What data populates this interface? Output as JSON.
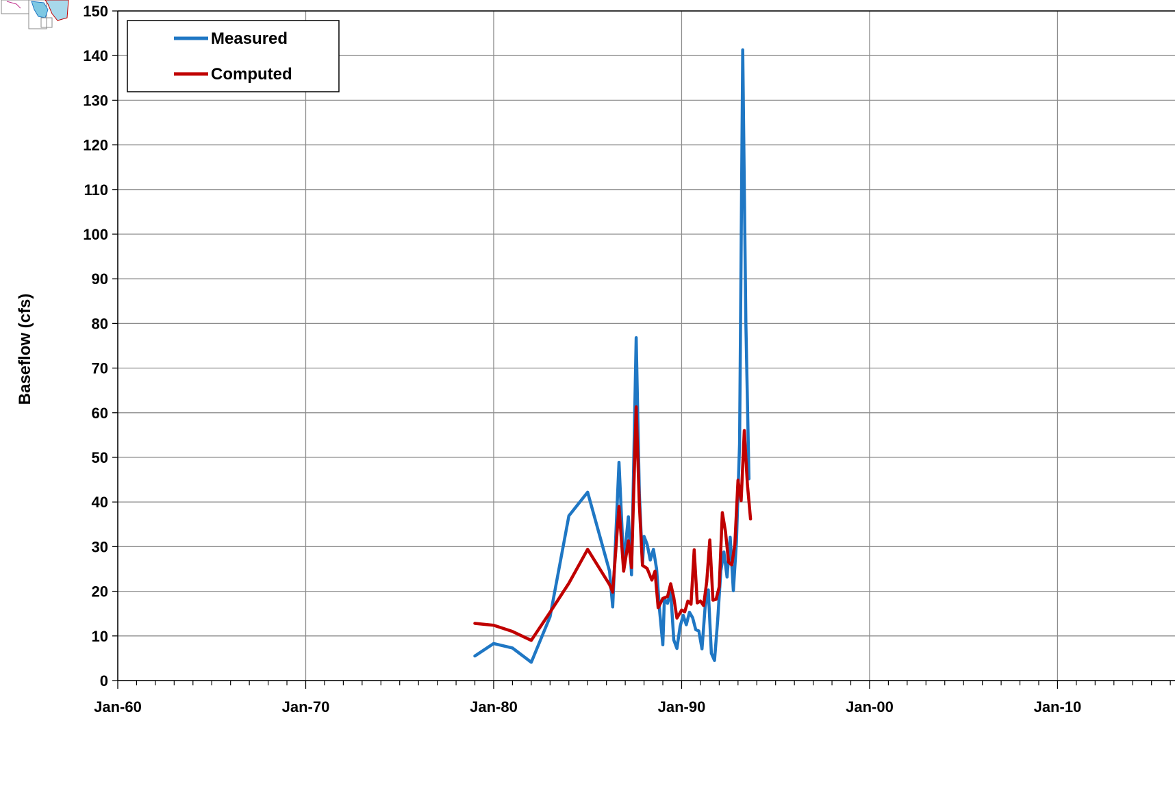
{
  "chart_data": {
    "type": "line",
    "ylabel": "Baseflow (cfs)",
    "xlabel": "",
    "ylim": [
      0,
      150
    ],
    "y_ticks": [
      0,
      10,
      20,
      30,
      40,
      50,
      60,
      70,
      80,
      90,
      100,
      110,
      120,
      130,
      140,
      150
    ],
    "xlim": [
      "1960-01",
      "2016-04"
    ],
    "x_ticks": [
      {
        "date": "1960-01",
        "label": "Jan-60"
      },
      {
        "date": "1970-01",
        "label": "Jan-70"
      },
      {
        "date": "1980-01",
        "label": "Jan-80"
      },
      {
        "date": "1990-01",
        "label": "Jan-90"
      },
      {
        "date": "2000-01",
        "label": "Jan-00"
      },
      {
        "date": "2010-01",
        "label": "Jan-10"
      }
    ],
    "grid": true,
    "legend": "top-left",
    "series": [
      {
        "name": "Measured",
        "color": "#1f77c4",
        "points": [
          [
            "1979-01",
            5.5
          ],
          [
            "1980-01",
            8.3
          ],
          [
            "1981-01",
            7.3
          ],
          [
            "1982-01",
            4.1
          ],
          [
            "1983-01",
            14.3
          ],
          [
            "1984-01",
            36.9
          ],
          [
            "1985-01",
            42.2
          ],
          [
            "1986-03",
            24.5
          ],
          [
            "1986-05",
            16.5
          ],
          [
            "1986-09",
            48.9
          ],
          [
            "1986-12",
            26.0
          ],
          [
            "1987-03",
            36.7
          ],
          [
            "1987-05",
            23.7
          ],
          [
            "1987-08",
            76.8
          ],
          [
            "1987-10",
            42.0
          ],
          [
            "1987-12",
            26.0
          ],
          [
            "1988-01",
            32.3
          ],
          [
            "1988-03",
            30.5
          ],
          [
            "1988-05",
            27.0
          ],
          [
            "1988-07",
            29.4
          ],
          [
            "1988-09",
            25.0
          ],
          [
            "1988-11",
            15.5
          ],
          [
            "1989-01",
            8.0
          ],
          [
            "1989-02",
            18.3
          ],
          [
            "1989-04",
            17.3
          ],
          [
            "1989-06",
            20.0
          ],
          [
            "1989-08",
            9.1
          ],
          [
            "1989-10",
            7.2
          ],
          [
            "1989-12",
            12.1
          ],
          [
            "1990-02",
            14.6
          ],
          [
            "1990-04",
            12.5
          ],
          [
            "1990-06",
            15.3
          ],
          [
            "1990-08",
            14.1
          ],
          [
            "1990-10",
            11.4
          ],
          [
            "1990-12",
            11.1
          ],
          [
            "1991-02",
            7.1
          ],
          [
            "1991-04",
            16.5
          ],
          [
            "1991-06",
            20.3
          ],
          [
            "1991-08",
            6.1
          ],
          [
            "1991-10",
            4.5
          ],
          [
            "1991-12",
            13.5
          ],
          [
            "1992-02",
            24.6
          ],
          [
            "1992-04",
            28.8
          ],
          [
            "1992-06",
            23.2
          ],
          [
            "1992-08",
            32.1
          ],
          [
            "1992-10",
            20.1
          ],
          [
            "1992-12",
            31.0
          ],
          [
            "1993-02",
            53.0
          ],
          [
            "1993-04",
            141.3
          ],
          [
            "1993-06",
            80.0
          ],
          [
            "1993-08",
            45.2
          ]
        ]
      },
      {
        "name": "Computed",
        "color": "#c00000",
        "points": [
          [
            "1979-01",
            12.8
          ],
          [
            "1980-01",
            12.4
          ],
          [
            "1981-01",
            11.0
          ],
          [
            "1982-01",
            9.0
          ],
          [
            "1983-01",
            15.3
          ],
          [
            "1984-01",
            21.8
          ],
          [
            "1985-01",
            29.4
          ],
          [
            "1986-03",
            21.5
          ],
          [
            "1986-05",
            19.8
          ],
          [
            "1986-09",
            39.0
          ],
          [
            "1986-12",
            24.5
          ],
          [
            "1987-03",
            31.3
          ],
          [
            "1987-05",
            25.3
          ],
          [
            "1987-08",
            61.3
          ],
          [
            "1987-10",
            39.5
          ],
          [
            "1987-12",
            25.8
          ],
          [
            "1988-03",
            25.1
          ],
          [
            "1988-06",
            22.5
          ],
          [
            "1988-08",
            24.5
          ],
          [
            "1988-10",
            16.3
          ],
          [
            "1989-01",
            18.4
          ],
          [
            "1989-04",
            18.8
          ],
          [
            "1989-06",
            21.7
          ],
          [
            "1989-08",
            18.6
          ],
          [
            "1989-10",
            14.0
          ],
          [
            "1990-01",
            15.8
          ],
          [
            "1990-03",
            15.4
          ],
          [
            "1990-05",
            17.8
          ],
          [
            "1990-07",
            17.1
          ],
          [
            "1990-09",
            29.3
          ],
          [
            "1990-11",
            17.4
          ],
          [
            "1991-01",
            17.8
          ],
          [
            "1991-03",
            16.8
          ],
          [
            "1991-05",
            22.1
          ],
          [
            "1991-07",
            31.5
          ],
          [
            "1991-09",
            18.0
          ],
          [
            "1991-11",
            18.2
          ],
          [
            "1992-01",
            21.0
          ],
          [
            "1992-03",
            37.6
          ],
          [
            "1992-05",
            33.4
          ],
          [
            "1992-07",
            26.5
          ],
          [
            "1992-09",
            25.9
          ],
          [
            "1992-11",
            30.5
          ],
          [
            "1993-01",
            44.9
          ],
          [
            "1993-03",
            40.3
          ],
          [
            "1993-05",
            56.0
          ],
          [
            "1993-07",
            44.0
          ],
          [
            "1993-09",
            36.2
          ]
        ]
      }
    ]
  }
}
